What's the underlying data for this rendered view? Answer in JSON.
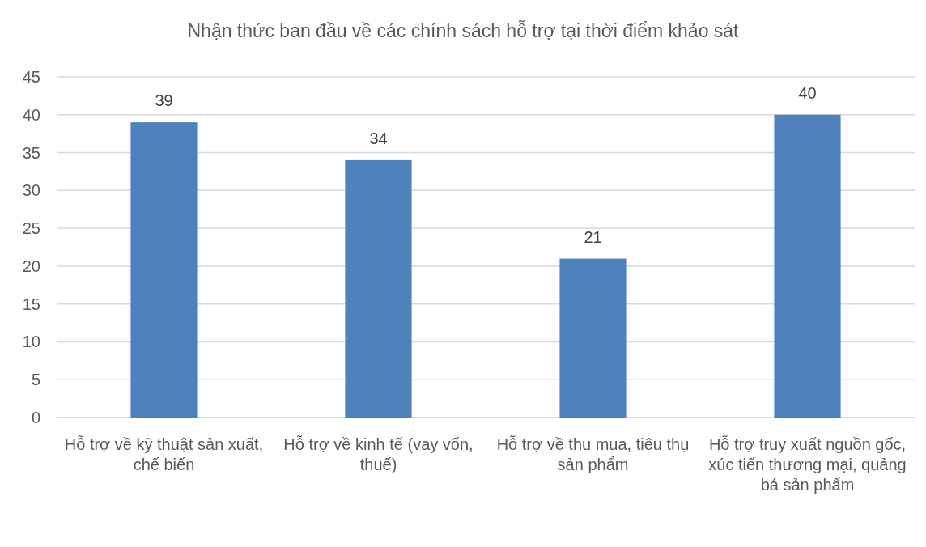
{
  "chart_data": {
    "type": "bar",
    "title": "Nhận thức ban đầu về các chính sách hỗ trợ tại thời điểm khảo sát",
    "categories": [
      "Hỗ trợ về kỹ thuật sản xuất, chế biến",
      "Hỗ trợ về kinh tế (vay vốn, thuế)",
      "Hỗ trợ về thu mua, tiêu thụ sản phẩm",
      "Hỗ trợ truy xuất nguồn gốc, xúc tiến thương mại, quảng bá sản phẩm"
    ],
    "values": [
      39,
      34,
      21,
      40
    ],
    "color": "#4f81bd",
    "ylim": [
      0,
      45
    ],
    "yticks": [
      0,
      5,
      10,
      15,
      20,
      25,
      30,
      35,
      40,
      45
    ],
    "grid": "y",
    "data_labels": true
  }
}
